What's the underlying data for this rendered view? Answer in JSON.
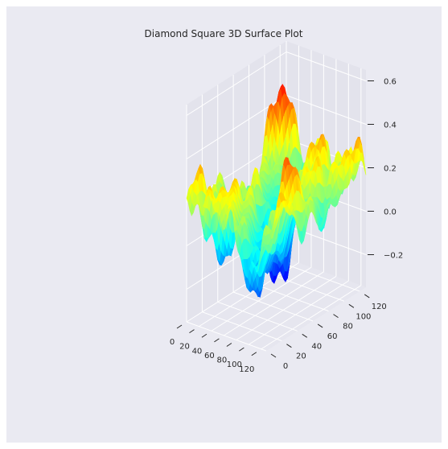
{
  "chart_data": {
    "type": "surface3d",
    "title": "Diamond Square 3D Surface Plot",
    "colormap": "jet",
    "grid": true,
    "background": "#eaeaf2",
    "pane_color": "#e3e3ec",
    "x_ticks": [
      "0",
      "20",
      "40",
      "60",
      "80",
      "100",
      "120"
    ],
    "y_ticks": [
      "0",
      "20",
      "40",
      "60",
      "80",
      "100",
      "120"
    ],
    "z_ticks": [
      "−0.2",
      "0.0",
      "0.2",
      "0.4",
      "0.6"
    ],
    "xlim": [
      0,
      128
    ],
    "ylim": [
      0,
      128
    ],
    "zlim": [
      -0.35,
      0.65
    ],
    "z_range_observed": [
      -0.35,
      0.62
    ]
  }
}
